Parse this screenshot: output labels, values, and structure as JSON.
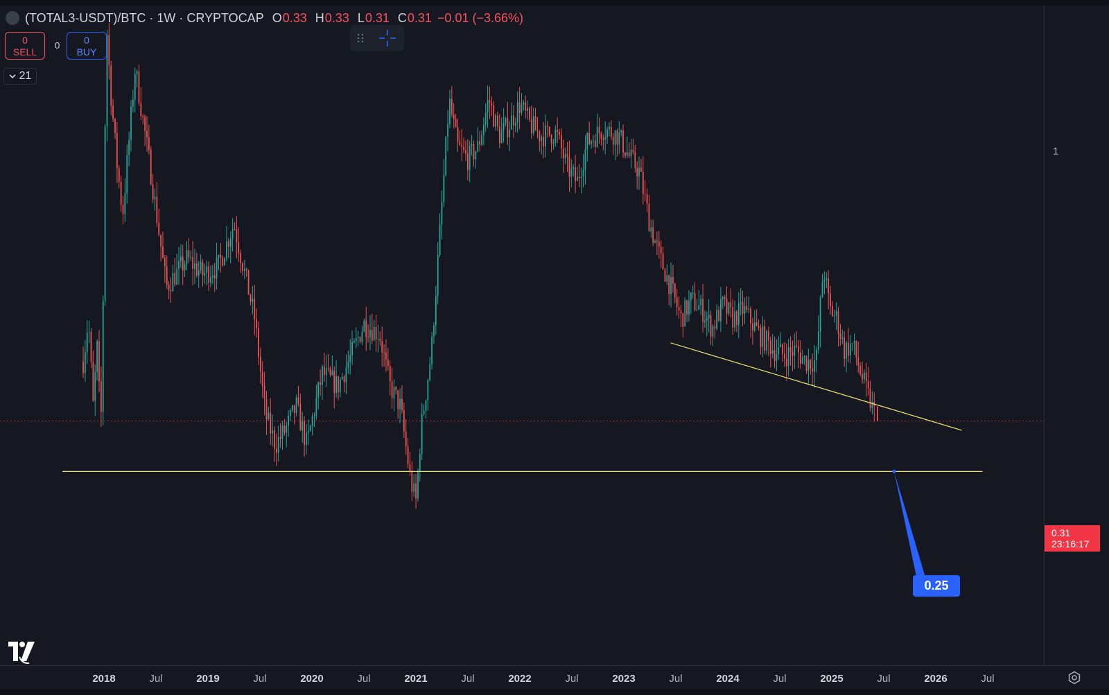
{
  "legend": {
    "symbol": "(TOTAL3-USDT)/BTC · 1W · CRYPTOCAP",
    "open_label": "O",
    "open": "0.33",
    "high_label": "H",
    "high": "0.33",
    "low_label": "L",
    "low": "0.31",
    "close_label": "C",
    "close": "0.31",
    "change": "−0.01 (−3.66%)"
  },
  "trade": {
    "sell_count": "0",
    "sell_label": "SELL",
    "spread": "0",
    "buy_count": "0",
    "buy_label": "BUY"
  },
  "indicators_collapse": {
    "count": "21"
  },
  "colors": {
    "background": "#151821",
    "up": "#26a69a",
    "down": "#ef5350",
    "trendline": "#e6dc6a",
    "accent": "#2962ff",
    "price_tag": "#f23645"
  },
  "icons": [
    "drag-handle-icon",
    "crosshair-icon",
    "chevron-down-icon",
    "tradingview-logo-icon",
    "settings-icon"
  ],
  "price_axis": {
    "tick_label": "1",
    "last_price": "0.31",
    "countdown": "23:16:17"
  },
  "annotation": {
    "label": "0.25"
  },
  "time_axis": {
    "labels": [
      {
        "text": "2018",
        "year": true
      },
      {
        "text": "Jul",
        "year": false
      },
      {
        "text": "2019",
        "year": true
      },
      {
        "text": "Jul",
        "year": false
      },
      {
        "text": "2020",
        "year": true
      },
      {
        "text": "Jul",
        "year": false
      },
      {
        "text": "2021",
        "year": true
      },
      {
        "text": "Jul",
        "year": false
      },
      {
        "text": "2022",
        "year": true
      },
      {
        "text": "Jul",
        "year": false
      },
      {
        "text": "2023",
        "year": true
      },
      {
        "text": "Jul",
        "year": false
      },
      {
        "text": "2024",
        "year": true
      },
      {
        "text": "Jul",
        "year": false
      },
      {
        "text": "2025",
        "year": true
      },
      {
        "text": "Jul",
        "year": false
      },
      {
        "text": "2026",
        "year": true
      },
      {
        "text": "Jul",
        "year": false
      }
    ]
  },
  "chart_data": {
    "type": "candlestick",
    "timeframe": "1W",
    "x_unit": "year",
    "y_scale": "log",
    "grid": false,
    "path_keypoints": [
      {
        "x": 2017.8,
        "y": 0.4
      },
      {
        "x": 2017.85,
        "y": 0.48
      },
      {
        "x": 2017.9,
        "y": 0.32
      },
      {
        "x": 2017.93,
        "y": 0.44
      },
      {
        "x": 2017.97,
        "y": 0.3
      },
      {
        "x": 2018.0,
        "y": 0.65
      },
      {
        "x": 2018.02,
        "y": 1.75
      },
      {
        "x": 2018.06,
        "y": 1.3
      },
      {
        "x": 2018.12,
        "y": 0.95
      },
      {
        "x": 2018.18,
        "y": 0.75
      },
      {
        "x": 2018.3,
        "y": 1.4
      },
      {
        "x": 2018.45,
        "y": 0.9
      },
      {
        "x": 2018.6,
        "y": 0.55
      },
      {
        "x": 2018.8,
        "y": 0.62
      },
      {
        "x": 2018.95,
        "y": 0.58
      },
      {
        "x": 2019.1,
        "y": 0.6
      },
      {
        "x": 2019.25,
        "y": 0.72
      },
      {
        "x": 2019.45,
        "y": 0.48
      },
      {
        "x": 2019.55,
        "y": 0.32
      },
      {
        "x": 2019.65,
        "y": 0.28
      },
      {
        "x": 2019.75,
        "y": 0.3
      },
      {
        "x": 2019.85,
        "y": 0.33
      },
      {
        "x": 2019.95,
        "y": 0.28
      },
      {
        "x": 2020.1,
        "y": 0.38
      },
      {
        "x": 2020.25,
        "y": 0.36
      },
      {
        "x": 2020.4,
        "y": 0.42
      },
      {
        "x": 2020.5,
        "y": 0.47
      },
      {
        "x": 2020.65,
        "y": 0.45
      },
      {
        "x": 2020.75,
        "y": 0.36
      },
      {
        "x": 2020.85,
        "y": 0.33
      },
      {
        "x": 2020.95,
        "y": 0.24
      },
      {
        "x": 2021.0,
        "y": 0.22
      },
      {
        "x": 2021.05,
        "y": 0.3
      },
      {
        "x": 2021.15,
        "y": 0.42
      },
      {
        "x": 2021.25,
        "y": 0.78
      },
      {
        "x": 2021.32,
        "y": 1.22
      },
      {
        "x": 2021.4,
        "y": 1.0
      },
      {
        "x": 2021.5,
        "y": 0.95
      },
      {
        "x": 2021.6,
        "y": 1.0
      },
      {
        "x": 2021.7,
        "y": 1.23
      },
      {
        "x": 2021.8,
        "y": 1.05
      },
      {
        "x": 2021.9,
        "y": 1.1
      },
      {
        "x": 2022.0,
        "y": 1.2
      },
      {
        "x": 2022.1,
        "y": 1.1
      },
      {
        "x": 2022.2,
        "y": 1.05
      },
      {
        "x": 2022.35,
        "y": 1.06
      },
      {
        "x": 2022.45,
        "y": 0.92
      },
      {
        "x": 2022.55,
        "y": 0.86
      },
      {
        "x": 2022.65,
        "y": 1.02
      },
      {
        "x": 2022.8,
        "y": 1.08
      },
      {
        "x": 2022.95,
        "y": 1.05
      },
      {
        "x": 2023.05,
        "y": 0.96
      },
      {
        "x": 2023.15,
        "y": 0.9
      },
      {
        "x": 2023.25,
        "y": 0.72
      },
      {
        "x": 2023.35,
        "y": 0.62
      },
      {
        "x": 2023.45,
        "y": 0.55
      },
      {
        "x": 2023.55,
        "y": 0.48
      },
      {
        "x": 2023.65,
        "y": 0.52
      },
      {
        "x": 2023.75,
        "y": 0.5
      },
      {
        "x": 2023.85,
        "y": 0.46
      },
      {
        "x": 2023.95,
        "y": 0.51
      },
      {
        "x": 2024.05,
        "y": 0.48
      },
      {
        "x": 2024.15,
        "y": 0.5
      },
      {
        "x": 2024.3,
        "y": 0.45
      },
      {
        "x": 2024.45,
        "y": 0.42
      },
      {
        "x": 2024.55,
        "y": 0.41
      },
      {
        "x": 2024.65,
        "y": 0.42
      },
      {
        "x": 2024.75,
        "y": 0.4
      },
      {
        "x": 2024.85,
        "y": 0.4
      },
      {
        "x": 2024.92,
        "y": 0.6
      },
      {
        "x": 2024.98,
        "y": 0.5
      },
      {
        "x": 2025.05,
        "y": 0.48
      },
      {
        "x": 2025.12,
        "y": 0.42
      },
      {
        "x": 2025.2,
        "y": 0.43
      },
      {
        "x": 2025.28,
        "y": 0.38
      },
      {
        "x": 2025.36,
        "y": 0.34
      },
      {
        "x": 2025.44,
        "y": 0.31
      }
    ],
    "last": {
      "open": 0.33,
      "high": 0.33,
      "low": 0.31,
      "close": 0.31
    },
    "lines": [
      {
        "name": "horizontal",
        "x1": 2017.6,
        "y1": 0.25,
        "x2": 2026.45,
        "y2": 0.25
      },
      {
        "name": "trendline",
        "x1": 2023.45,
        "y1": 0.433,
        "x2": 2026.25,
        "y2": 0.298
      }
    ],
    "last_price_line": 0.31,
    "price_ticks": [
      1
    ]
  }
}
